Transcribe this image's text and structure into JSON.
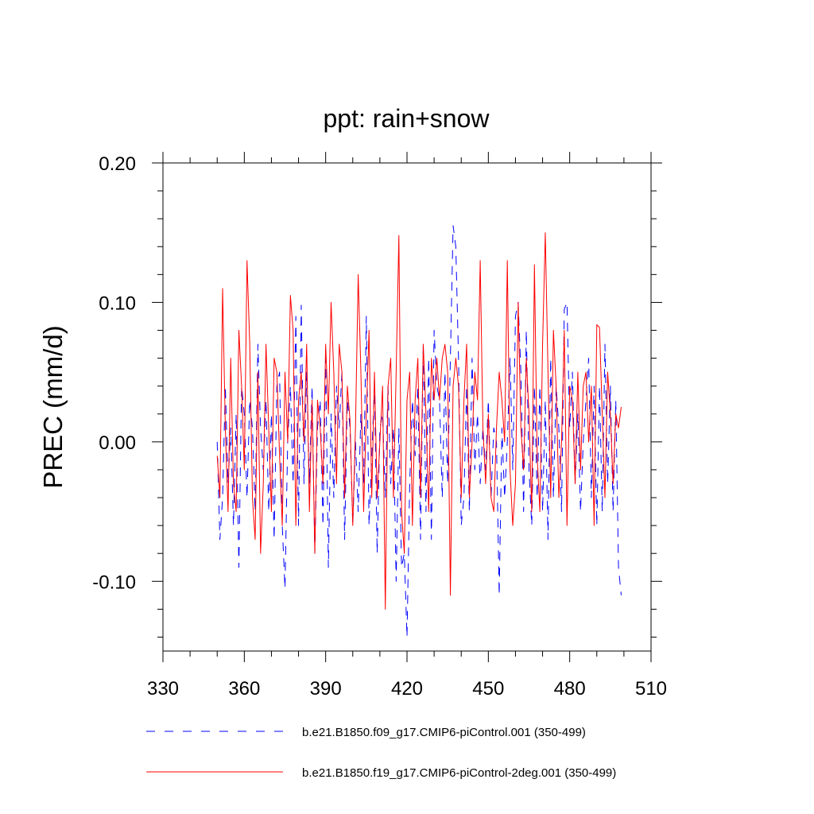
{
  "chart_data": {
    "type": "line",
    "title": "ppt: rain+snow",
    "xlabel": "",
    "ylabel": "PREC  (mm/d)",
    "xlim": [
      330,
      510
    ],
    "ylim": [
      -0.15,
      0.2
    ],
    "xticks": [
      330,
      360,
      390,
      420,
      450,
      480,
      510
    ],
    "xtick_labels": [
      "330",
      "360",
      "390",
      "420",
      "450",
      "480",
      "510"
    ],
    "yticks": [
      -0.1,
      0.0,
      0.1,
      0.2
    ],
    "ytick_labels": [
      "-0.10",
      "0.00",
      "0.10",
      "0.20"
    ],
    "x_minor_step": 10,
    "y_minor_step": 0.02,
    "grid": false,
    "legend_position": "bottom",
    "series": [
      {
        "name": "b.e21.B1850.f09_g17.CMIP6-piControl.001 (350-499)",
        "color": "#0000ff",
        "dash": "dashed",
        "x_start": 350,
        "values": [
          0.0,
          -0.07,
          -0.04,
          0.04,
          -0.03,
          0.01,
          -0.06,
          0.02,
          -0.09,
          0.04,
          0.02,
          -0.04,
          0.03,
          0.01,
          -0.05,
          0.07,
          0.01,
          -0.02,
          0.03,
          -0.05,
          0.02,
          -0.07,
          0.04,
          0.05,
          -0.06,
          -0.105,
          0.0,
          0.04,
          -0.03,
          0.09,
          -0.06,
          0.098,
          -0.03,
          0.05,
          -0.03,
          0.04,
          -0.08,
          0.01,
          0.03,
          -0.06,
          0.06,
          -0.09,
          0.02,
          -0.04,
          0.04,
          0.01,
          0.05,
          -0.07,
          0.03,
          0.01,
          -0.06,
          0.0,
          -0.05,
          0.02,
          -0.03,
          0.09,
          -0.06,
          -0.01,
          0.04,
          -0.08,
          0.01,
          0.02,
          -0.04,
          0.04,
          -0.03,
          0.01,
          -0.1,
          0.01,
          -0.09,
          -0.08,
          -0.14,
          -0.03,
          0.03,
          -0.01,
          0.04,
          -0.07,
          0.07,
          -0.05,
          0.06,
          -0.07,
          0.08,
          0.04,
          0.03,
          -0.04,
          0.05,
          -0.03,
          0.06,
          0.155,
          0.14,
          0.06,
          -0.06,
          -0.04,
          0.04,
          -0.05,
          0.06,
          -0.02,
          0.02,
          -0.03,
          0.01,
          -0.02,
          0.03,
          -0.04,
          0.01,
          0.0,
          -0.11,
          0.01,
          -0.04,
          0.0,
          0.06,
          -0.02,
          0.09,
          0.1,
          0.05,
          -0.05,
          0.08,
          -0.02,
          -0.06,
          0.04,
          -0.04,
          0.04,
          -0.05,
          0.03,
          -0.07,
          0.06,
          -0.04,
          0.04,
          0.01,
          -0.05,
          0.095,
          0.1,
          0.01,
          0.05,
          -0.03,
          0.02,
          -0.05,
          0.0,
          0.03,
          0.06,
          -0.04,
          0.04,
          -0.06,
          0.04,
          -0.05,
          0.07,
          -0.03,
          0.04,
          -0.05,
          0.03,
          -0.09,
          -0.11
        ]
      },
      {
        "name": "b.e21.B1850.f19_g17.CMIP6-piControl-2deg.001 (350-499)",
        "color": "#ff0000",
        "dash": "solid",
        "x_start": 350,
        "values": [
          -0.01,
          -0.04,
          0.11,
          0.01,
          -0.05,
          0.06,
          -0.03,
          -0.05,
          0.08,
          0.04,
          -0.02,
          0.13,
          0.07,
          -0.04,
          -0.07,
          0.05,
          -0.08,
          -0.03,
          0.07,
          0.01,
          -0.05,
          0.06,
          0.05,
          -0.01,
          -0.06,
          0.05,
          0.0,
          0.105,
          0.08,
          -0.06,
          0.03,
          0.05,
          0.0,
          0.07,
          -0.05,
          0.03,
          -0.08,
          0.03,
          0.01,
          -0.03,
          0.07,
          0.02,
          0.1,
          0.05,
          -0.03,
          0.07,
          0.05,
          -0.04,
          0.04,
          0.015,
          -0.06,
          0.01,
          0.12,
          0.05,
          -0.05,
          0.02,
          0.08,
          -0.04,
          0.05,
          -0.04,
          0.0,
          0.04,
          -0.12,
          0.04,
          0.06,
          -0.04,
          0.05,
          0.148,
          -0.05,
          -0.08,
          0.03,
          0.05,
          -0.06,
          0.03,
          0.06,
          -0.04,
          0.07,
          0.02,
          -0.05,
          0.06,
          0.03,
          0.06,
          0.03,
          0.06,
          0.07,
          0.05,
          -0.11,
          0.04,
          0.06,
          0.04,
          -0.04,
          0.03,
          0.07,
          -0.04,
          0.0,
          0.05,
          0.03,
          0.13,
          0.01,
          -0.03,
          0.02,
          -0.04,
          -0.05,
          0.01,
          0.05,
          0.03,
          0.0,
          0.13,
          -0.02,
          -0.06,
          -0.03,
          0.1,
          0.01,
          -0.02,
          0.06,
          0.02,
          -0.05,
          0.127,
          -0.01,
          -0.05,
          0.07,
          0.15,
          0.05,
          -0.04,
          0.08,
          0.04,
          -0.04,
          0.0,
          0.08,
          -0.06,
          0.04,
          0.03,
          -0.03,
          0.05,
          -0.02,
          0.04,
          0.05,
          0.0,
          0.04,
          -0.06,
          0.084,
          0.082,
          0.02,
          -0.04,
          0.05,
          0.02,
          -0.03,
          0.02,
          0.01,
          0.025
        ]
      }
    ]
  }
}
